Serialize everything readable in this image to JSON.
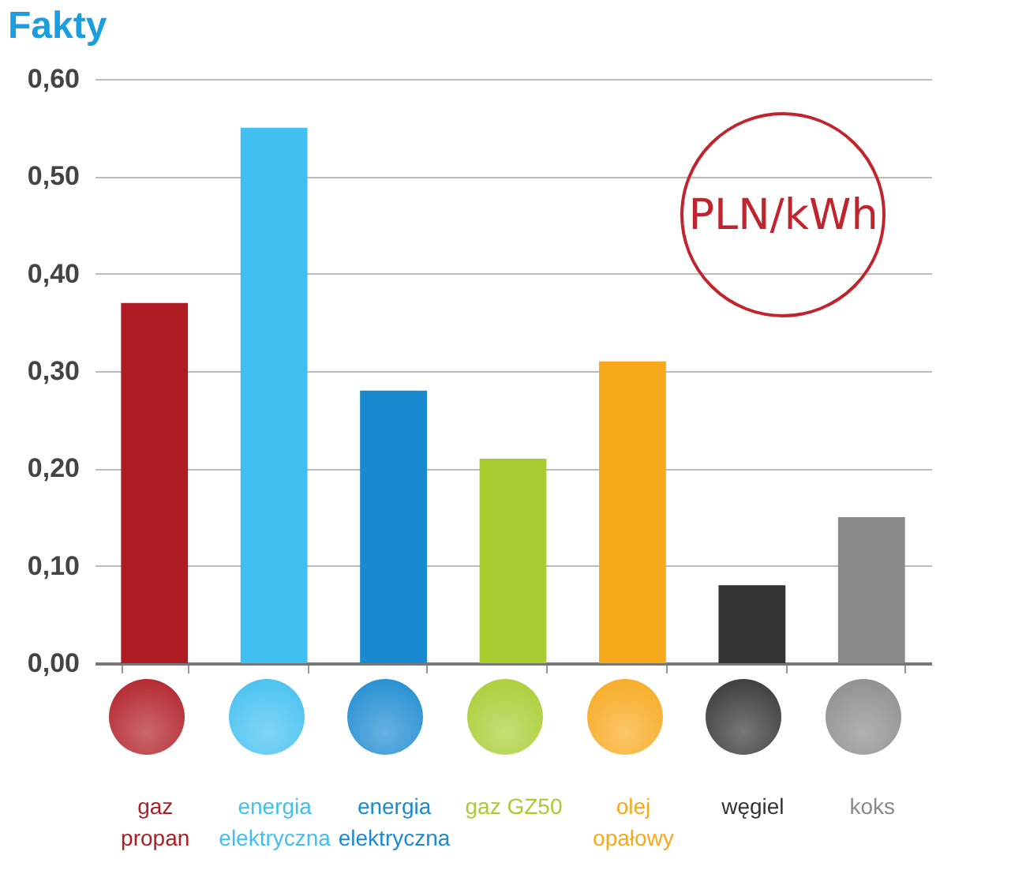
{
  "chart_data": {
    "type": "bar",
    "title": "Fakty",
    "categories": [
      "gaz\npropan",
      "energia\nelektryczna",
      "energia\nelektryczna",
      "gaz GZ50",
      "olej\nopałowy",
      "węgiel",
      "koks"
    ],
    "values": [
      0.37,
      0.55,
      0.28,
      0.21,
      0.31,
      0.08,
      0.15
    ],
    "colors": [
      "#b01c24",
      "#40bff0",
      "#1a8ad0",
      "#a8cc30",
      "#f7a81b",
      "#333333",
      "#8a8a8a"
    ],
    "ylim": [
      0,
      0.6
    ],
    "yticks": [
      {
        "value": 0,
        "label": "0,00"
      },
      {
        "value": 0.1,
        "label": "0,10"
      },
      {
        "value": 0.2,
        "label": "0,20"
      },
      {
        "value": 0.3,
        "label": "0,30"
      },
      {
        "value": 0.4,
        "label": "0,40"
      },
      {
        "value": 0.5,
        "label": "0,50"
      },
      {
        "value": 0.6,
        "label": "0,60"
      }
    ],
    "grid": "y",
    "annotations": [
      "PLN/kWh"
    ]
  }
}
